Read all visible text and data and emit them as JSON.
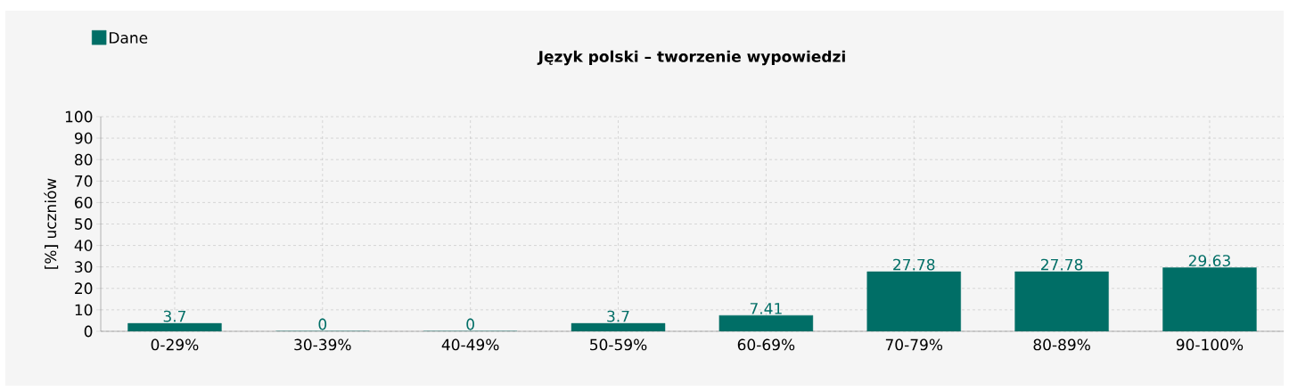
{
  "chart_data": {
    "type": "bar",
    "title": "Język polski – tworzenie wypowiedzi",
    "ylabel": "[%] uczniów",
    "categories": [
      "0-29%",
      "30-39%",
      "40-49%",
      "50-59%",
      "60-69%",
      "70-79%",
      "80-89%",
      "90-100%"
    ],
    "series": [
      {
        "name": "Dane",
        "color": "#006e66",
        "values": [
          3.7,
          0,
          0,
          3.7,
          7.41,
          27.78,
          27.78,
          29.63
        ]
      }
    ],
    "ylim": [
      0,
      100
    ],
    "yticks": [
      0,
      10,
      20,
      30,
      40,
      50,
      60,
      70,
      80,
      90,
      100
    ],
    "grid": true,
    "legend": "top left",
    "data_labels": true
  }
}
